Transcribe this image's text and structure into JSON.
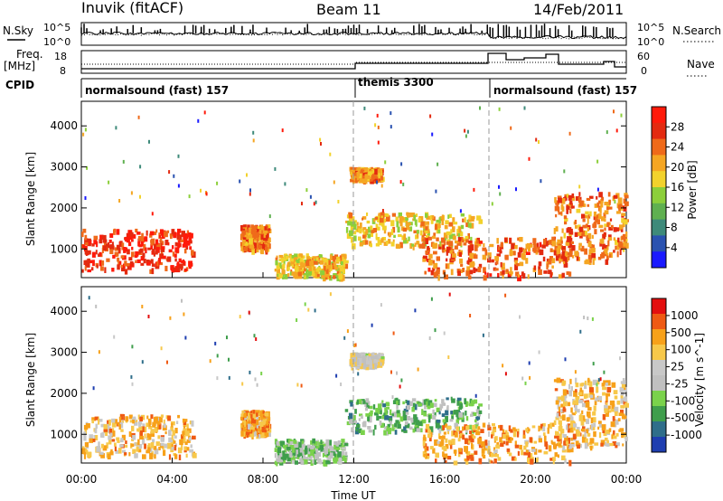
{
  "header": {
    "station": "Inuvik (fitACF)",
    "beam": "Beam 11",
    "date": "14/Feb/2011"
  },
  "left_labels": {
    "nsky": "N.Sky",
    "freq_line1": "Freq.",
    "freq_line2": "[MHz]",
    "cpid": "CPID"
  },
  "right_labels": {
    "nsearch": "N.Search",
    "nave": "Nave"
  },
  "noise_axis": {
    "left_top": "10^5",
    "left_bottom": "10^0",
    "right_top": "10^5",
    "right_bottom": "10^0"
  },
  "freq_axis": {
    "left_top": "18",
    "left_bottom": "8",
    "right_top": "60",
    "right_bottom": "0"
  },
  "cpid_segments": [
    {
      "label": "normalsound (fast) 157",
      "start_hour": 0.0
    },
    {
      "label": "themis 3300",
      "start_hour": 12.0
    },
    {
      "label": "normalsound (fast) 157",
      "start_hour": 18.0
    }
  ],
  "colors": {
    "power_scale": [
      "#1a1aff",
      "#2a52b0",
      "#3e8a7a",
      "#5fb050",
      "#8ccf3a",
      "#f2d22c",
      "#f5a623",
      "#ef6a1a",
      "#e32a10",
      "#ff1a0a"
    ],
    "velocity_scale": [
      "#e30f0f",
      "#ef5a13",
      "#f7a11a",
      "#f7c84a",
      "#c8c8c8",
      "#c0c0c0",
      "#7ad24b",
      "#3f9e4c",
      "#2f6e8a",
      "#1e3eb0"
    ],
    "backscatter_bright": "#ff1a0a"
  },
  "chart_data": [
    {
      "type": "heatmap",
      "panel": "power",
      "xlabel": "Time UT",
      "ylabel": "Slant Range [km]",
      "x_range_hours": [
        0,
        24
      ],
      "x_ticks": [
        "00:00",
        "04:00",
        "08:00",
        "12:00",
        "16:00",
        "20:00",
        "00:00"
      ],
      "ylim": [
        300,
        4600
      ],
      "y_ticks": [
        1000,
        2000,
        3000,
        4000
      ],
      "colorbar_label": "Power [dB]",
      "colorbar_ticks": [
        "4",
        "8",
        "12",
        "16",
        "20",
        "24",
        "28"
      ],
      "scatter_regions": [
        {
          "t0": 0.0,
          "t1": 4.9,
          "r0": 500,
          "r1": 1500,
          "level": 0.9
        },
        {
          "t0": 7.0,
          "t1": 8.2,
          "r0": 1000,
          "r1": 1600,
          "level": 0.75
        },
        {
          "t0": 8.5,
          "t1": 11.6,
          "r0": 350,
          "r1": 900,
          "level": 0.6
        },
        {
          "t0": 11.6,
          "t1": 17.5,
          "r0": 1100,
          "r1": 1900,
          "level": 0.6
        },
        {
          "t0": 11.8,
          "t1": 13.2,
          "r0": 2700,
          "r1": 3000,
          "level": 0.7
        },
        {
          "t0": 15.0,
          "t1": 21.5,
          "r0": 350,
          "r1": 1300,
          "level": 0.8
        },
        {
          "t0": 20.8,
          "t1": 24.0,
          "r0": 700,
          "r1": 2400,
          "level": 0.75
        }
      ]
    },
    {
      "type": "heatmap",
      "panel": "velocity",
      "xlabel": "Time UT",
      "ylabel": "Slant Range [km]",
      "x_range_hours": [
        0,
        24
      ],
      "x_ticks": [
        "00:00",
        "04:00",
        "08:00",
        "12:00",
        "16:00",
        "20:00",
        "00:00"
      ],
      "ylim": [
        300,
        4600
      ],
      "y_ticks": [
        1000,
        2000,
        3000,
        4000
      ],
      "colorbar_label": "Velocity [m s^-1]",
      "colorbar_ticks": [
        "1000",
        "500",
        "100",
        "25",
        "-25",
        "-100",
        "-500",
        "-1000"
      ],
      "scatter_regions": [
        {
          "t0": 0.0,
          "t1": 4.9,
          "r0": 500,
          "r1": 1500,
          "level": 0.3
        },
        {
          "t0": 7.0,
          "t1": 8.2,
          "r0": 1000,
          "r1": 1600,
          "level": 0.25
        },
        {
          "t0": 8.5,
          "t1": 11.6,
          "r0": 350,
          "r1": 900,
          "level": 0.65
        },
        {
          "t0": 11.6,
          "t1": 17.5,
          "r0": 1100,
          "r1": 1900,
          "level": 0.7
        },
        {
          "t0": 11.8,
          "t1": 13.2,
          "r0": 2700,
          "r1": 3000,
          "level": 0.45
        },
        {
          "t0": 15.0,
          "t1": 21.5,
          "r0": 350,
          "r1": 1300,
          "level": 0.25
        },
        {
          "t0": 20.8,
          "t1": 24.0,
          "r0": 700,
          "r1": 2400,
          "level": 0.3
        }
      ]
    }
  ]
}
